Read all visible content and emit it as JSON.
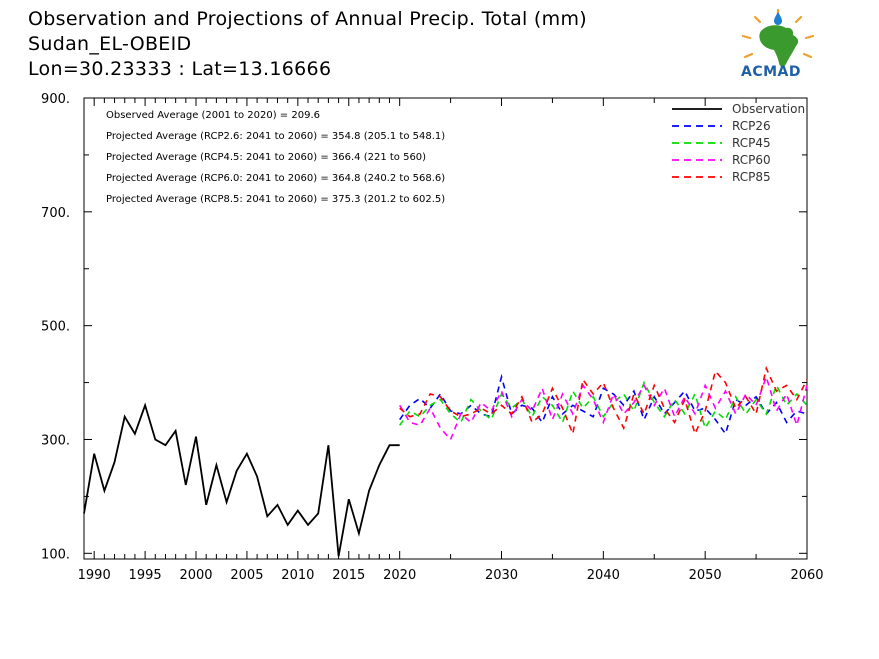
{
  "header": {
    "line1": "Observation and Projections of Annual Precip. Total (mm)",
    "line2": "Sudan_EL-OBEID",
    "line3": "Lon=30.23333 : Lat=13.16666"
  },
  "logo": {
    "text": "ACMAD"
  },
  "colors": {
    "Observation": "#000000",
    "RCP26": "#0000ff",
    "RCP45": "#00dd00",
    "RCP60": "#ff00ff",
    "RCP85": "#ff0000"
  },
  "chart_data": {
    "type": "line",
    "title": "Observation and Projections of Annual Precip. Total (mm)",
    "xlim": [
      1989,
      2060
    ],
    "ylim": [
      90,
      900
    ],
    "grid": false,
    "legend_position": "top-right",
    "y_ticks": [
      100,
      300,
      500,
      700,
      900
    ],
    "y_tick_labels": [
      "100.",
      "300.",
      "500.",
      "700.",
      "900."
    ],
    "y_minor_ticks": [
      200,
      400,
      600,
      800
    ],
    "x_ticks": [
      1990,
      1995,
      2000,
      2005,
      2010,
      2015,
      2020,
      2030,
      2040,
      2050,
      2060
    ],
    "x_tick_labels": [
      "1990",
      "1995",
      "2000",
      "2005",
      "2010",
      "2015",
      "2020",
      "2030",
      "2040",
      "2050",
      "2060"
    ],
    "x_minor_ticks": [
      1991,
      1992,
      1993,
      1994,
      1996,
      1997,
      1998,
      1999,
      2001,
      2002,
      2003,
      2004,
      2006,
      2007,
      2008,
      2009,
      2011,
      2012,
      2013,
      2014,
      2016,
      2017,
      2018,
      2019,
      2025,
      2035,
      2045,
      2055
    ],
    "annotations": [
      "Observed Average (2001 to 2020) = 209.6",
      "Projected Average (RCP2.6: 2041 to 2060) = 354.8 (205.1 to 548.1)",
      "Projected Average (RCP4.5: 2041 to 2060) = 366.4 (221 to 560)",
      "Projected Average (RCP6.0: 2041 to 2060) = 364.8 (240.2 to 568.6)",
      "Projected Average (RCP8.5: 2041 to 2060) = 375.3 (201.2 to 602.5)"
    ],
    "legend": [
      "Observation",
      "RCP26",
      "RCP45",
      "RCP60",
      "RCP85"
    ],
    "series": [
      {
        "name": "Observation",
        "style": "solid",
        "x": [
          1989,
          1990,
          1991,
          1992,
          1993,
          1994,
          1995,
          1996,
          1997,
          1998,
          1999,
          2000,
          2001,
          2002,
          2003,
          2004,
          2005,
          2006,
          2007,
          2008,
          2009,
          2010,
          2011,
          2012,
          2013,
          2014,
          2015,
          2016,
          2017,
          2018,
          2019,
          2020
        ],
        "values": [
          170,
          275,
          210,
          260,
          340,
          310,
          360,
          300,
          290,
          315,
          220,
          305,
          185,
          255,
          190,
          245,
          275,
          235,
          165,
          185,
          150,
          175,
          150,
          170,
          290,
          95,
          195,
          135,
          210,
          255,
          290,
          290
        ]
      },
      {
        "name": "RCP26",
        "style": "dashed",
        "x": [
          2020,
          2021,
          2022,
          2023,
          2024,
          2025,
          2026,
          2027,
          2028,
          2029,
          2030,
          2031,
          2032,
          2033,
          2034,
          2035,
          2036,
          2037,
          2038,
          2039,
          2040,
          2041,
          2042,
          2043,
          2044,
          2045,
          2046,
          2047,
          2048,
          2049,
          2050,
          2051,
          2052,
          2053,
          2054,
          2055,
          2056,
          2057,
          2058,
          2059,
          2060
        ],
        "values": [
          335,
          360,
          372,
          355,
          380,
          350,
          345,
          360,
          345,
          340,
          410,
          345,
          360,
          355,
          330,
          375,
          345,
          360,
          350,
          340,
          390,
          380,
          360,
          385,
          335,
          375,
          345,
          365,
          385,
          350,
          355,
          335,
          310,
          370,
          360,
          375,
          345,
          365,
          330,
          350,
          345
        ]
      },
      {
        "name": "RCP45",
        "style": "dashed",
        "x": [
          2020,
          2021,
          2022,
          2023,
          2024,
          2025,
          2026,
          2027,
          2028,
          2029,
          2030,
          2031,
          2032,
          2033,
          2034,
          2035,
          2036,
          2037,
          2038,
          2039,
          2040,
          2041,
          2042,
          2043,
          2044,
          2045,
          2046,
          2047,
          2048,
          2049,
          2050,
          2051,
          2052,
          2053,
          2054,
          2055,
          2056,
          2057,
          2058,
          2059,
          2060
        ],
        "values": [
          325,
          350,
          340,
          360,
          370,
          345,
          330,
          370,
          350,
          335,
          380,
          355,
          370,
          340,
          375,
          360,
          330,
          385,
          355,
          375,
          340,
          365,
          380,
          350,
          400,
          365,
          340,
          370,
          345,
          380,
          320,
          350,
          335,
          375,
          345,
          370,
          345,
          395,
          360,
          380,
          360
        ]
      },
      {
        "name": "RCP60",
        "style": "dashed",
        "x": [
          2020,
          2021,
          2022,
          2023,
          2024,
          2025,
          2026,
          2027,
          2028,
          2029,
          2030,
          2031,
          2032,
          2033,
          2034,
          2035,
          2036,
          2037,
          2038,
          2039,
          2040,
          2041,
          2042,
          2043,
          2044,
          2045,
          2046,
          2047,
          2048,
          2049,
          2050,
          2051,
          2052,
          2053,
          2054,
          2055,
          2056,
          2057,
          2058,
          2059,
          2060
        ],
        "values": [
          360,
          330,
          325,
          355,
          320,
          300,
          345,
          330,
          365,
          350,
          385,
          340,
          370,
          350,
          390,
          335,
          380,
          345,
          395,
          370,
          330,
          380,
          345,
          365,
          395,
          360,
          390,
          340,
          375,
          345,
          395,
          355,
          385,
          345,
          380,
          360,
          410,
          350,
          380,
          325,
          395
        ]
      },
      {
        "name": "RCP85",
        "style": "dashed",
        "x": [
          2020,
          2021,
          2022,
          2023,
          2024,
          2025,
          2026,
          2027,
          2028,
          2029,
          2030,
          2031,
          2032,
          2033,
          2034,
          2035,
          2036,
          2037,
          2038,
          2039,
          2040,
          2041,
          2042,
          2043,
          2044,
          2045,
          2046,
          2047,
          2048,
          2049,
          2050,
          2051,
          2052,
          2053,
          2054,
          2055,
          2056,
          2057,
          2058,
          2059,
          2060
        ],
        "values": [
          355,
          340,
          345,
          380,
          375,
          350,
          340,
          345,
          355,
          345,
          360,
          345,
          375,
          330,
          345,
          390,
          355,
          310,
          405,
          380,
          400,
          355,
          320,
          380,
          345,
          395,
          355,
          330,
          370,
          310,
          350,
          420,
          400,
          355,
          375,
          345,
          425,
          385,
          395,
          370,
          405
        ]
      }
    ]
  }
}
